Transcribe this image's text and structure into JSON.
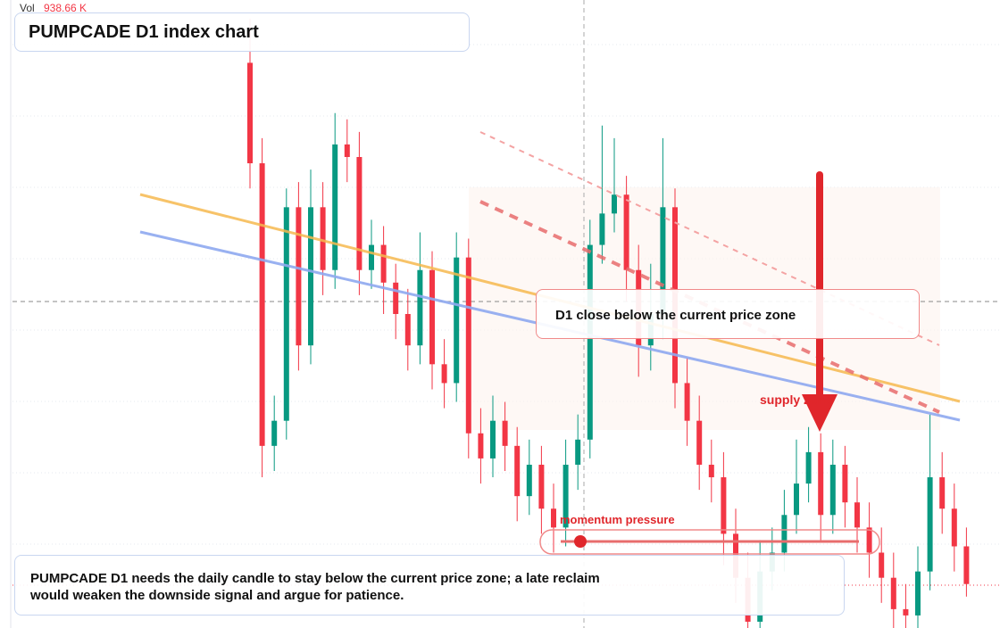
{
  "chart_data": {
    "type": "candlestick",
    "title": "PUMPCADE D1 index chart",
    "volume_label": "Vol",
    "volume_value": "938.66 K",
    "annotations": {
      "zone": "D1 close below the current price zone",
      "supply": "supply zone",
      "momentum": "momentum pressure",
      "note": "PUMPCADE D1 needs the daily candle to stay below the current price zone; a late reclaim would weaken the downside signal and argue for patience."
    },
    "up_color": "#089981",
    "down_color": "#f23645",
    "ylim": [
      0,
      100
    ],
    "ohlc": [
      [
        90,
        97,
        70,
        74
      ],
      [
        74,
        78,
        24,
        29
      ],
      [
        29,
        37,
        25,
        33
      ],
      [
        33,
        70,
        30,
        67
      ],
      [
        67,
        71,
        41,
        45
      ],
      [
        45,
        73,
        42,
        67
      ],
      [
        67,
        71,
        53,
        57
      ],
      [
        57,
        82,
        54,
        77
      ],
      [
        77,
        81,
        71,
        75
      ],
      [
        75,
        79,
        53,
        57
      ],
      [
        57,
        65,
        54,
        61
      ],
      [
        61,
        64,
        50,
        55
      ],
      [
        55,
        58,
        46,
        50
      ],
      [
        50,
        54,
        41,
        45
      ],
      [
        45,
        63,
        42,
        57
      ],
      [
        57,
        60,
        38,
        42
      ],
      [
        42,
        46,
        35,
        39
      ],
      [
        39,
        63,
        36,
        59
      ],
      [
        59,
        62,
        27,
        31
      ],
      [
        31,
        35,
        23,
        27
      ],
      [
        27,
        37,
        24,
        33
      ],
      [
        33,
        36,
        25,
        29
      ],
      [
        29,
        32,
        17,
        21
      ],
      [
        21,
        30,
        18,
        26
      ],
      [
        26,
        29,
        15,
        19
      ],
      [
        19,
        23,
        12,
        16
      ],
      [
        16,
        30,
        13,
        26
      ],
      [
        26,
        34,
        22,
        30
      ],
      [
        30,
        65,
        27,
        61
      ],
      [
        61,
        80,
        58,
        66
      ],
      [
        66,
        78,
        63,
        69
      ],
      [
        69,
        72,
        52,
        57
      ],
      [
        57,
        61,
        40,
        45
      ],
      [
        45,
        58,
        41,
        50
      ],
      [
        50,
        78,
        46,
        67
      ],
      [
        67,
        70,
        35,
        39
      ],
      [
        39,
        43,
        29,
        33
      ],
      [
        33,
        37,
        22,
        26
      ],
      [
        26,
        30,
        20,
        24
      ],
      [
        24,
        28,
        10,
        15
      ],
      [
        15,
        19,
        4,
        8
      ],
      [
        8,
        12,
        0,
        1
      ],
      [
        1,
        14,
        0,
        9
      ],
      [
        9,
        16,
        6,
        12
      ],
      [
        12,
        22,
        9,
        18
      ],
      [
        18,
        30,
        15,
        23
      ],
      [
        23,
        32,
        20,
        28
      ],
      [
        28,
        31,
        14,
        18
      ],
      [
        18,
        30,
        15,
        26
      ],
      [
        26,
        29,
        16,
        20
      ],
      [
        20,
        24,
        12,
        16
      ],
      [
        16,
        20,
        8,
        12
      ],
      [
        12,
        16,
        4,
        8
      ],
      [
        8,
        12,
        0,
        3
      ],
      [
        3,
        7,
        0,
        2
      ],
      [
        2,
        13,
        0,
        9
      ],
      [
        9,
        34,
        6,
        24
      ],
      [
        24,
        28,
        15,
        19
      ],
      [
        19,
        23,
        9,
        13
      ],
      [
        13,
        16,
        5,
        7
      ]
    ]
  }
}
